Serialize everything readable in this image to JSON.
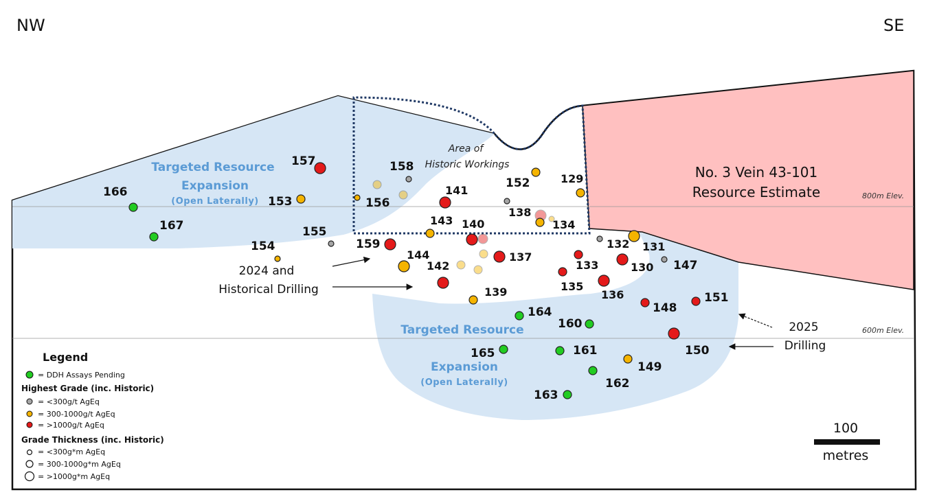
{
  "orientation": {
    "left": "NW",
    "right": "SE"
  },
  "zones": {
    "upper": {
      "title_line1": "Targeted Resource",
      "title_line2": "Expansion",
      "subtitle": "(Open Laterally)"
    },
    "lower": {
      "title_line1": "Targeted Resource",
      "title_line2": "Expansion",
      "subtitle": "(Open Laterally)"
    },
    "historic_line1": "Area of",
    "historic_line2": "Historic Workings",
    "resource_line1": "No. 3 Vein 43-101",
    "resource_line2": "Resource Estimate"
  },
  "elevations": {
    "upper": "800m Elev.",
    "lower": "600m Elev."
  },
  "callouts": {
    "drilling_2024_line1": "2024 and",
    "drilling_2024_line2": "Historical  Drilling",
    "drilling_2025_line1": "2025",
    "drilling_2025_line2": "Drilling"
  },
  "legend": {
    "title": "Legend",
    "pending": "= DDH Assays Pending",
    "grade_heading": "Highest Grade (inc. Historic)",
    "grade_items": [
      "= <300g/t AgEq",
      "= 300-1000g/t AgEq",
      "= >1000g/t AgEq"
    ],
    "thickness_heading": "Grade Thickness (inc. Historic)",
    "thickness_items": [
      "= <300g*m AgEq",
      "= 300-1000g*m AgEq",
      "= >1000g*m AgEq"
    ]
  },
  "scale": {
    "value": "100",
    "unit": "metres"
  },
  "colors": {
    "green": "#22cc22",
    "gray": "#a6a6a6",
    "orange": "#f5b400",
    "red": "#e41a1a",
    "zone_blue": "#d6e6f5",
    "resource_pink": "#ffc0c0"
  },
  "drillholes": [
    {
      "id": "166",
      "grade": "pending"
    },
    {
      "id": "167",
      "grade": "pending"
    },
    {
      "id": "157",
      "grade": "high",
      "thickness": "large"
    },
    {
      "id": "153",
      "grade": "medium",
      "thickness": "medium"
    },
    {
      "id": "154",
      "grade": "medium",
      "thickness": "small"
    },
    {
      "id": "155",
      "grade": "low",
      "thickness": "small"
    },
    {
      "id": "158",
      "grade": "low",
      "thickness": "small"
    },
    {
      "id": "156",
      "grade": "medium",
      "thickness": "small"
    },
    {
      "id": "141",
      "grade": "high",
      "thickness": "large"
    },
    {
      "id": "159",
      "grade": "high",
      "thickness": "large"
    },
    {
      "id": "143",
      "grade": "medium",
      "thickness": "medium"
    },
    {
      "id": "140",
      "grade": "high",
      "thickness": "large"
    },
    {
      "id": "144",
      "grade": "medium",
      "thickness": "large"
    },
    {
      "id": "142",
      "grade": "high",
      "thickness": "large"
    },
    {
      "id": "137",
      "grade": "high",
      "thickness": "large"
    },
    {
      "id": "139",
      "grade": "medium",
      "thickness": "medium"
    },
    {
      "id": "152",
      "grade": "medium",
      "thickness": "medium"
    },
    {
      "id": "138",
      "grade": "low",
      "thickness": "small"
    },
    {
      "id": "134",
      "grade": "medium",
      "thickness": "medium"
    },
    {
      "id": "129",
      "grade": "medium",
      "thickness": "medium"
    },
    {
      "id": "132",
      "grade": "low",
      "thickness": "small"
    },
    {
      "id": "133",
      "grade": "high",
      "thickness": "medium"
    },
    {
      "id": "131",
      "grade": "medium",
      "thickness": "large"
    },
    {
      "id": "130",
      "grade": "high",
      "thickness": "large"
    },
    {
      "id": "135",
      "grade": "high",
      "thickness": "medium"
    },
    {
      "id": "136",
      "grade": "high",
      "thickness": "large"
    },
    {
      "id": "147",
      "grade": "low",
      "thickness": "small"
    },
    {
      "id": "148",
      "grade": "high",
      "thickness": "medium"
    },
    {
      "id": "151",
      "grade": "high",
      "thickness": "medium"
    },
    {
      "id": "150",
      "grade": "high",
      "thickness": "large"
    },
    {
      "id": "164",
      "grade": "pending"
    },
    {
      "id": "160",
      "grade": "pending"
    },
    {
      "id": "165",
      "grade": "pending"
    },
    {
      "id": "161",
      "grade": "pending"
    },
    {
      "id": "149",
      "grade": "medium",
      "thickness": "medium"
    },
    {
      "id": "162",
      "grade": "pending"
    },
    {
      "id": "163",
      "grade": "pending"
    }
  ]
}
